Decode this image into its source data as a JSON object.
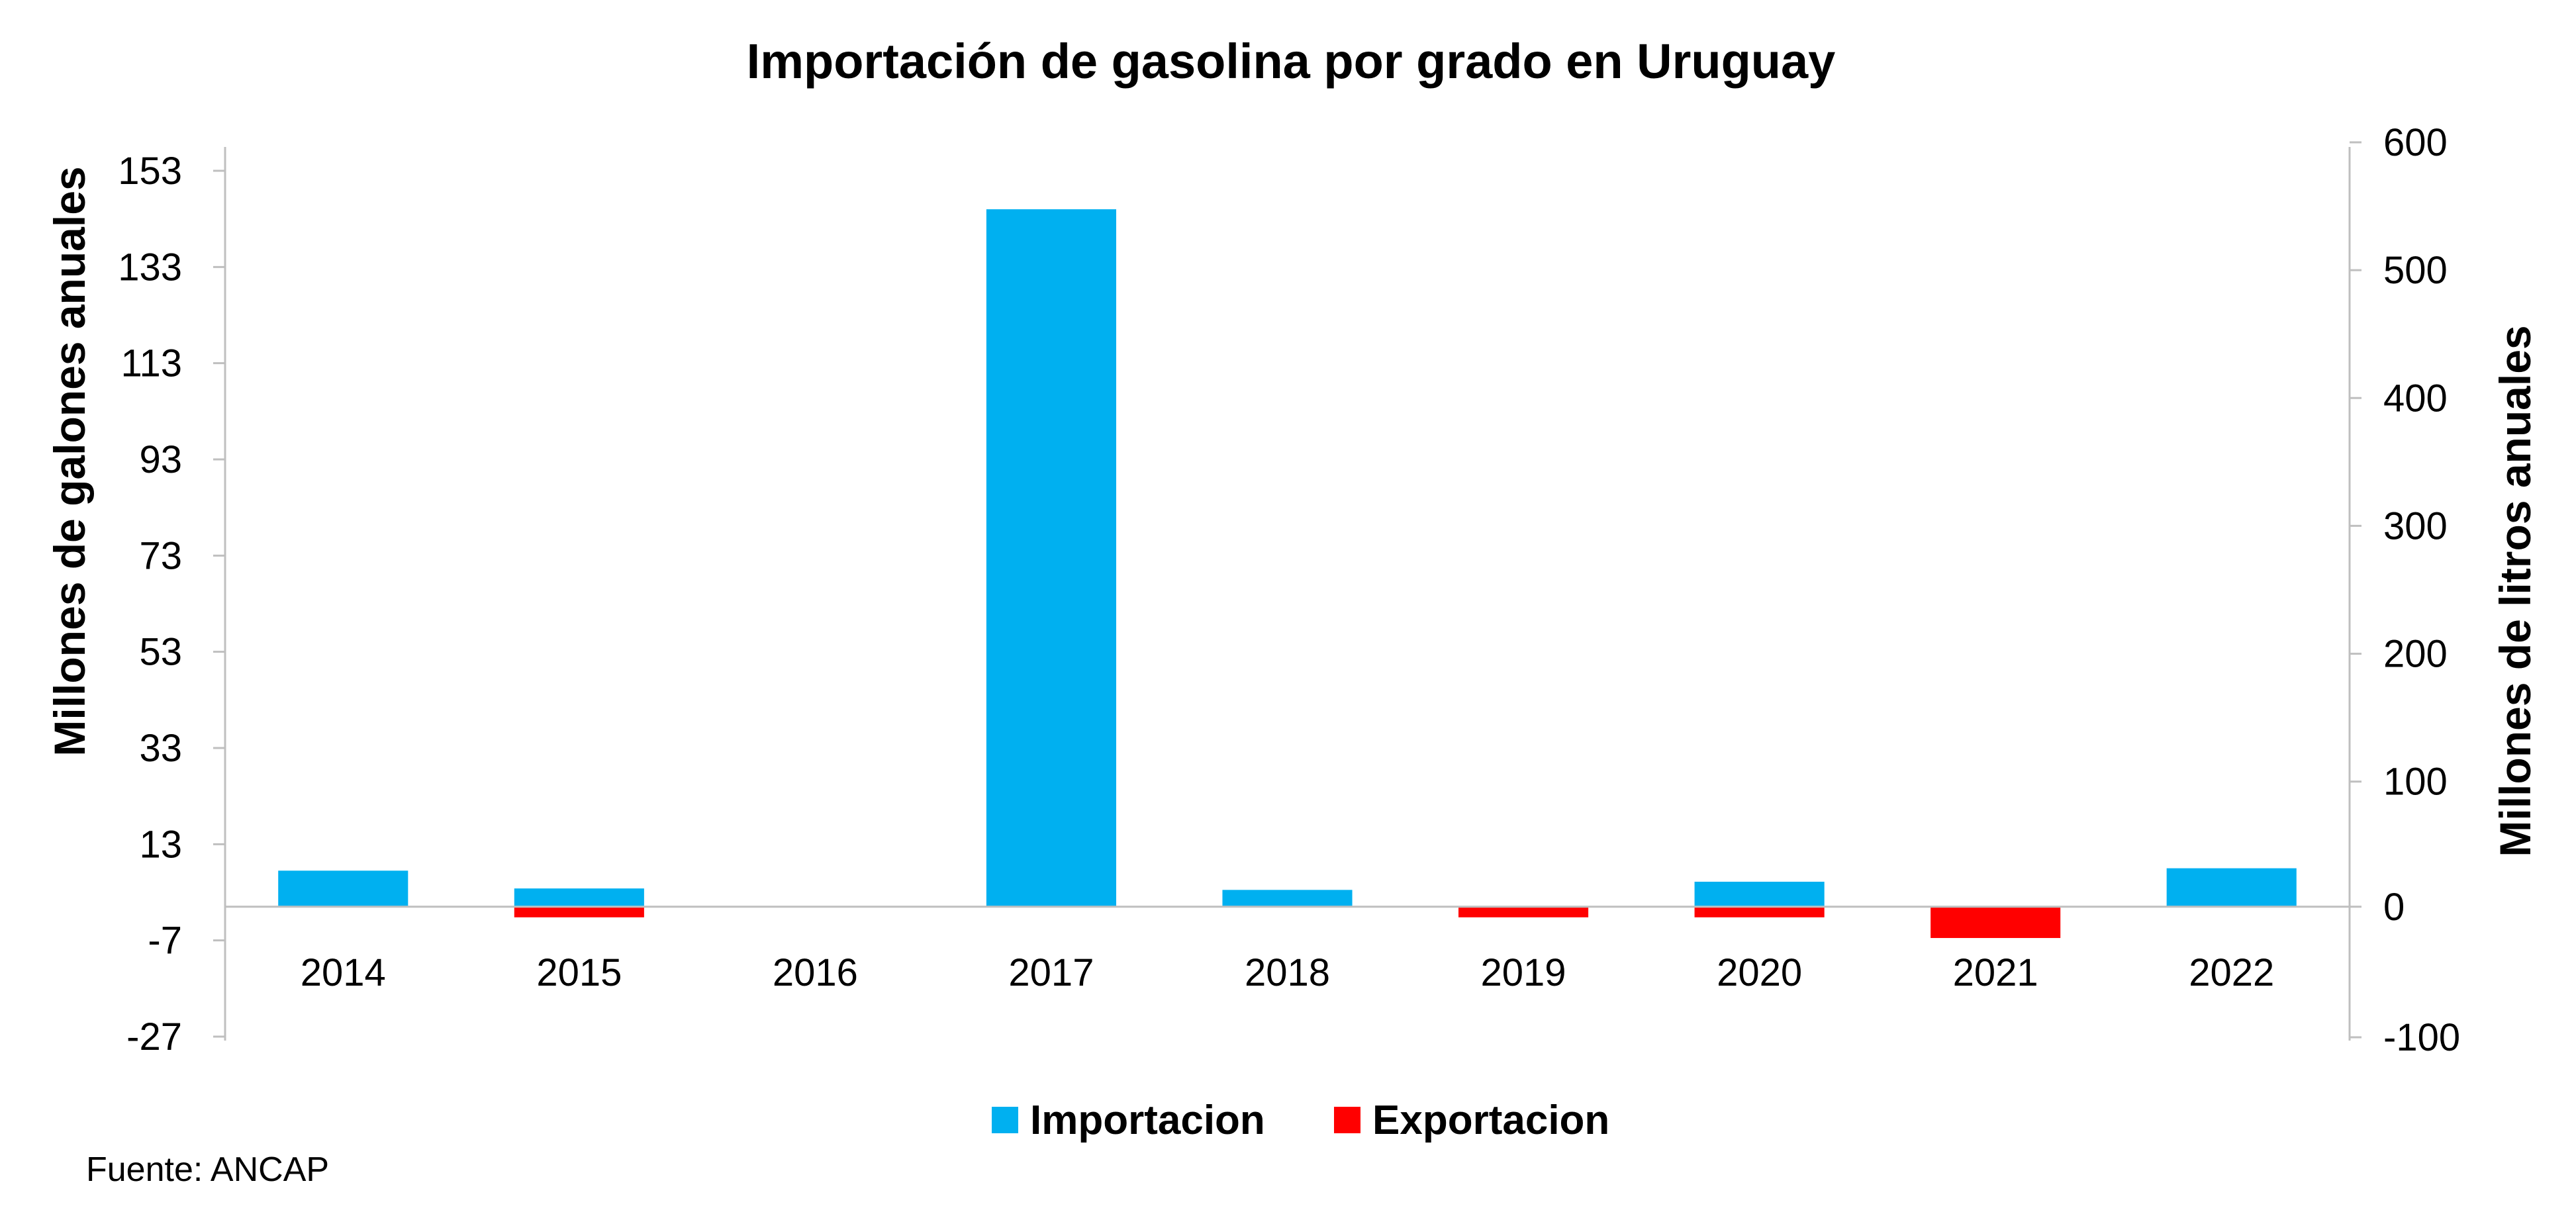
{
  "chart_data": {
    "type": "bar",
    "title": "Importación de gasolina por grado en Uruguay",
    "ylabel": "Millones de galones anuales",
    "y2label": "Millones de litros anuales",
    "categories": [
      "2014",
      "2015",
      "2016",
      "2017",
      "2018",
      "2019",
      "2020",
      "2021",
      "2022"
    ],
    "series": [
      {
        "name": "Importacion",
        "color": "#00b0f0",
        "values": [
          7.5,
          3.8,
          0,
          145,
          3.5,
          0,
          5.2,
          0,
          8.0
        ]
      },
      {
        "name": "Exportacion",
        "color": "#ff0000",
        "values": [
          0,
          -2.2,
          0,
          0,
          0,
          -2.2,
          -2.2,
          -6.5,
          0
        ]
      }
    ],
    "ylim": [
      -27,
      153
    ],
    "yticks": [
      "153",
      "133",
      "113",
      "93",
      "73",
      "53",
      "33",
      "13",
      "-7",
      "-27"
    ],
    "y2lim": [
      -100,
      600
    ],
    "y2ticks": [
      "600",
      "500",
      "400",
      "300",
      "200",
      "100",
      "0",
      "-100"
    ],
    "legend_position": "bottom",
    "grid": false,
    "source": "Fuente: ANCAP"
  }
}
